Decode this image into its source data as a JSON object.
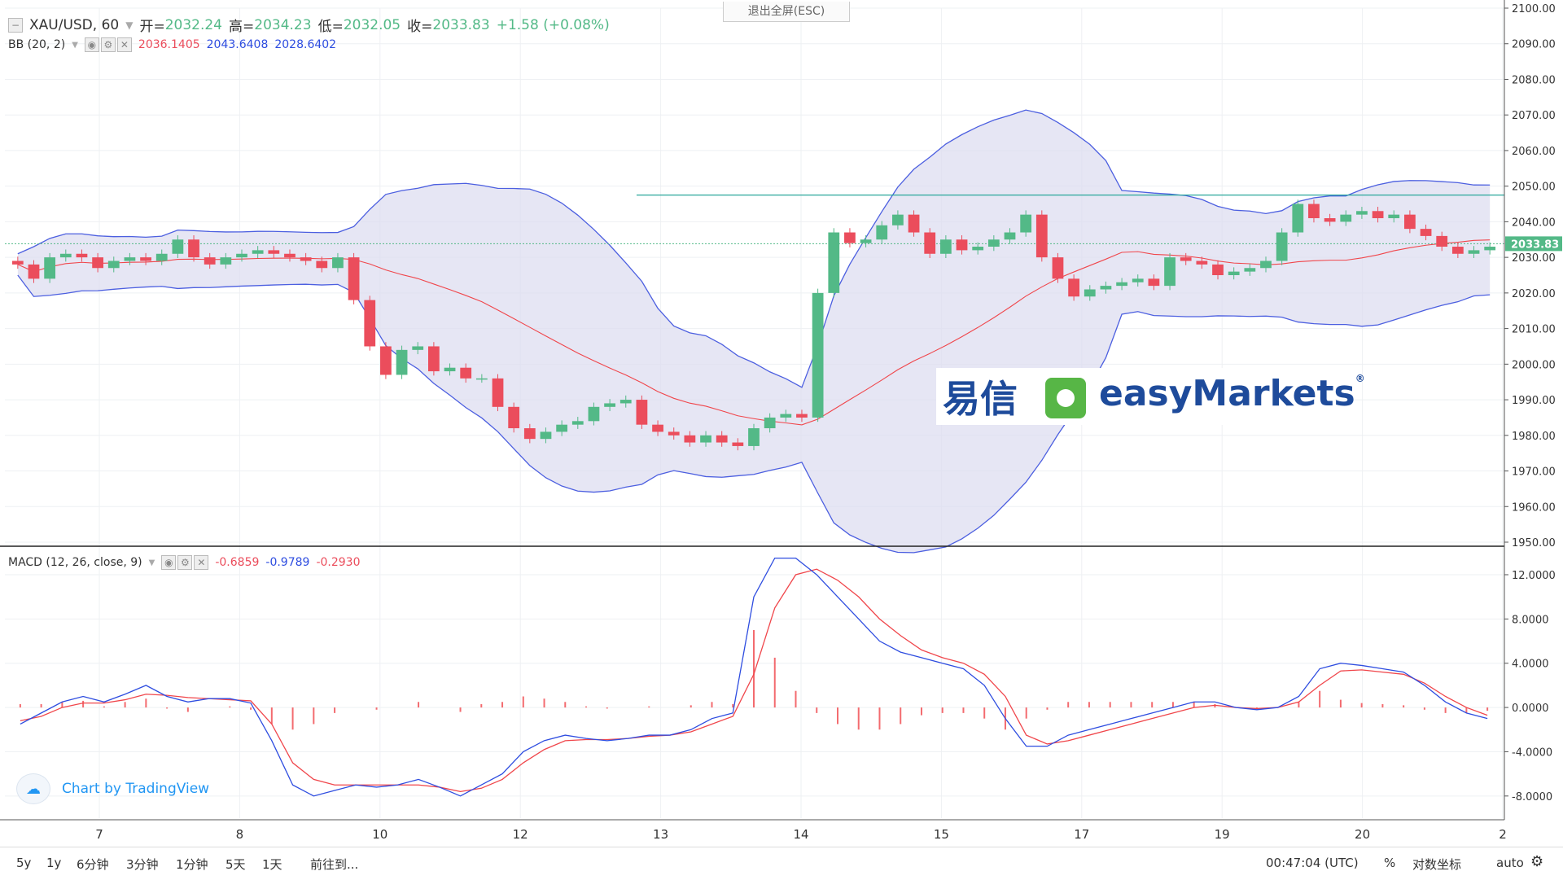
{
  "header": {
    "symbol": "XAU/USD, 60",
    "open_label": "开=",
    "open": "2032.24",
    "high_label": "高=",
    "high": "2034.23",
    "low_label": "低=",
    "low": "2032.05",
    "close_label": "收=",
    "close": "2033.83",
    "change": "+1.58 (+0.08%)"
  },
  "esc_label": "退出全屏(ESC)",
  "bb_legend": {
    "name": "BB (20, 2)",
    "v1": "2036.1405",
    "v2": "2043.6408",
    "v3": "2028.6402"
  },
  "macd_legend": {
    "name": "MACD (12, 26, close, 9)",
    "v1": "-0.6859",
    "v2": "-0.9789",
    "v3": "-0.2930"
  },
  "price_tag": "2033.83",
  "brand": {
    "cn": "易信",
    "en": "easyMarkets",
    "reg": "®"
  },
  "credit": "Chart by TradingView",
  "bottom_toolbar": {
    "ranges": [
      "5y",
      "1y",
      "6分钟",
      "3分钟",
      "1分钟",
      "5天",
      "1天"
    ],
    "goto": "前往到...",
    "time": "00:47:04 (UTC)",
    "percent": "%",
    "log": "对数坐标",
    "auto": "auto"
  },
  "colors": {
    "up": "#53b987",
    "down": "#eb4d5c",
    "band_upper": "#4c5fe0",
    "band_lower": "#4c5fe0",
    "band_fill": "#dcdcf0",
    "basis": "#f0464b",
    "macd": "#2e4de0",
    "signal": "#f0464b",
    "hline": "#2aa79b"
  },
  "chart_data": [
    {
      "type": "candlestick",
      "title": "XAU/USD, 60",
      "y_ticks": [
        "2100.00",
        "2090.00",
        "2080.00",
        "2070.00",
        "2060.00",
        "2050.00",
        "2040.00",
        "2030.00",
        "2020.00",
        "2010.00",
        "2000.00",
        "1990.00",
        "1980.00",
        "1970.00",
        "1960.00",
        "1950.00"
      ],
      "ylim": [
        1950,
        2100
      ],
      "x_ticks": [
        "7",
        "8",
        "10",
        "12",
        "13",
        "14",
        "15",
        "17",
        "19",
        "20",
        "2"
      ],
      "horizontal_line": 2047.5,
      "last_price": 2033.83,
      "close_path": [
        2028,
        2024,
        2030,
        2031,
        2030,
        2027,
        2029,
        2030,
        2029,
        2031,
        2035,
        2030,
        2028,
        2030,
        2031,
        2032,
        2031,
        2030,
        2029,
        2027,
        2030,
        2018,
        2005,
        1997,
        2004,
        2005,
        1998,
        1999,
        1996,
        1996,
        1988,
        1982,
        1979,
        1981,
        1983,
        1984,
        1988,
        1989,
        1990,
        1983,
        1981,
        1980,
        1978,
        1980,
        1978,
        1977,
        1982,
        1985,
        1986,
        1985,
        2020,
        2037,
        2034,
        2035,
        2039,
        2042,
        2037,
        2031,
        2035,
        2032,
        2033,
        2035,
        2037,
        2042,
        2030,
        2024,
        2019,
        2021,
        2022,
        2023,
        2024,
        2022,
        2030,
        2029,
        2028,
        2025,
        2026,
        2027,
        2029,
        2037,
        2045,
        2041,
        2040,
        2042,
        2043,
        2041,
        2042,
        2038,
        2036,
        2033,
        2031,
        2032,
        2033
      ]
    },
    {
      "type": "line",
      "title": "MACD (12, 26, close, 9)",
      "y_ticks": [
        "12.0000",
        "8.0000",
        "4.0000",
        "0.0000",
        "-4.0000",
        "-8.0000"
      ],
      "ylim": [
        -10,
        14.5
      ],
      "series": [
        {
          "name": "MACD",
          "values": [
            -1.5,
            -0.5,
            0.5,
            1.0,
            0.5,
            1.2,
            2.0,
            1.0,
            0.5,
            0.8,
            0.8,
            0.4,
            -3,
            -7,
            -8,
            -7.5,
            -7,
            -7.2,
            -7,
            -6.5,
            -7.2,
            -8,
            -7,
            -6,
            -4,
            -3,
            -2.5,
            -2.8,
            -3,
            -2.8,
            -2.5,
            -2.5,
            -2,
            -1,
            -0.5,
            10,
            13.5,
            13.5,
            12,
            10,
            8,
            6,
            5,
            4.5,
            4,
            3.5,
            2,
            -1,
            -3.5,
            -3.5,
            -2.5,
            -2.0,
            -1.5,
            -1.0,
            -0.5,
            0.0,
            0.5,
            0.5,
            0.0,
            -0.2,
            0.0,
            1.0,
            3.5,
            4.0,
            3.8,
            3.5,
            3.2,
            2.0,
            0.5,
            -0.5,
            -1.0
          ]
        },
        {
          "name": "Signal",
          "values": [
            -1.2,
            -0.8,
            0.0,
            0.4,
            0.4,
            0.7,
            1.2,
            1.1,
            0.9,
            0.8,
            0.7,
            0.6,
            -1.5,
            -5,
            -6.5,
            -7,
            -7,
            -7,
            -7,
            -7,
            -7.2,
            -7.6,
            -7.3,
            -6.5,
            -5,
            -3.8,
            -3,
            -2.9,
            -2.9,
            -2.8,
            -2.6,
            -2.5,
            -2.2,
            -1.5,
            -0.8,
            3,
            9,
            12,
            12.5,
            11.5,
            10,
            8,
            6.5,
            5.2,
            4.5,
            4,
            3,
            1,
            -2.5,
            -3.3,
            -3,
            -2.5,
            -2.0,
            -1.5,
            -1.0,
            -0.5,
            0.0,
            0.2,
            0.0,
            -0.1,
            0.0,
            0.5,
            2.0,
            3.3,
            3.4,
            3.2,
            3.0,
            2.2,
            1.0,
            0.0,
            -0.7
          ]
        }
      ],
      "histogram": [
        0.3,
        0.3,
        0.5,
        0.6,
        0.1,
        0.5,
        0.8,
        -0.1,
        -0.4,
        0.0,
        0.1,
        -0.2,
        -1.5,
        -2.0,
        -1.5,
        -0.5,
        0.0,
        -0.2,
        0.0,
        0.5,
        0.0,
        -0.4,
        0.3,
        0.5,
        1.0,
        0.8,
        0.5,
        0.1,
        -0.1,
        0.0,
        0.1,
        0.0,
        0.2,
        0.5,
        0.3,
        7,
        4.5,
        1.5,
        -0.5,
        -1.5,
        -2,
        -2,
        -1.5,
        -0.7,
        -0.5,
        -0.5,
        -1,
        -2,
        -1,
        -0.2,
        0.5,
        0.5,
        0.5,
        0.5,
        0.5,
        0.5,
        0.5,
        0.3,
        0.0,
        -0.1,
        0.0,
        0.5,
        1.5,
        0.7,
        0.4,
        0.3,
        0.2,
        -0.2,
        -0.5,
        -0.5,
        -0.3
      ]
    }
  ]
}
